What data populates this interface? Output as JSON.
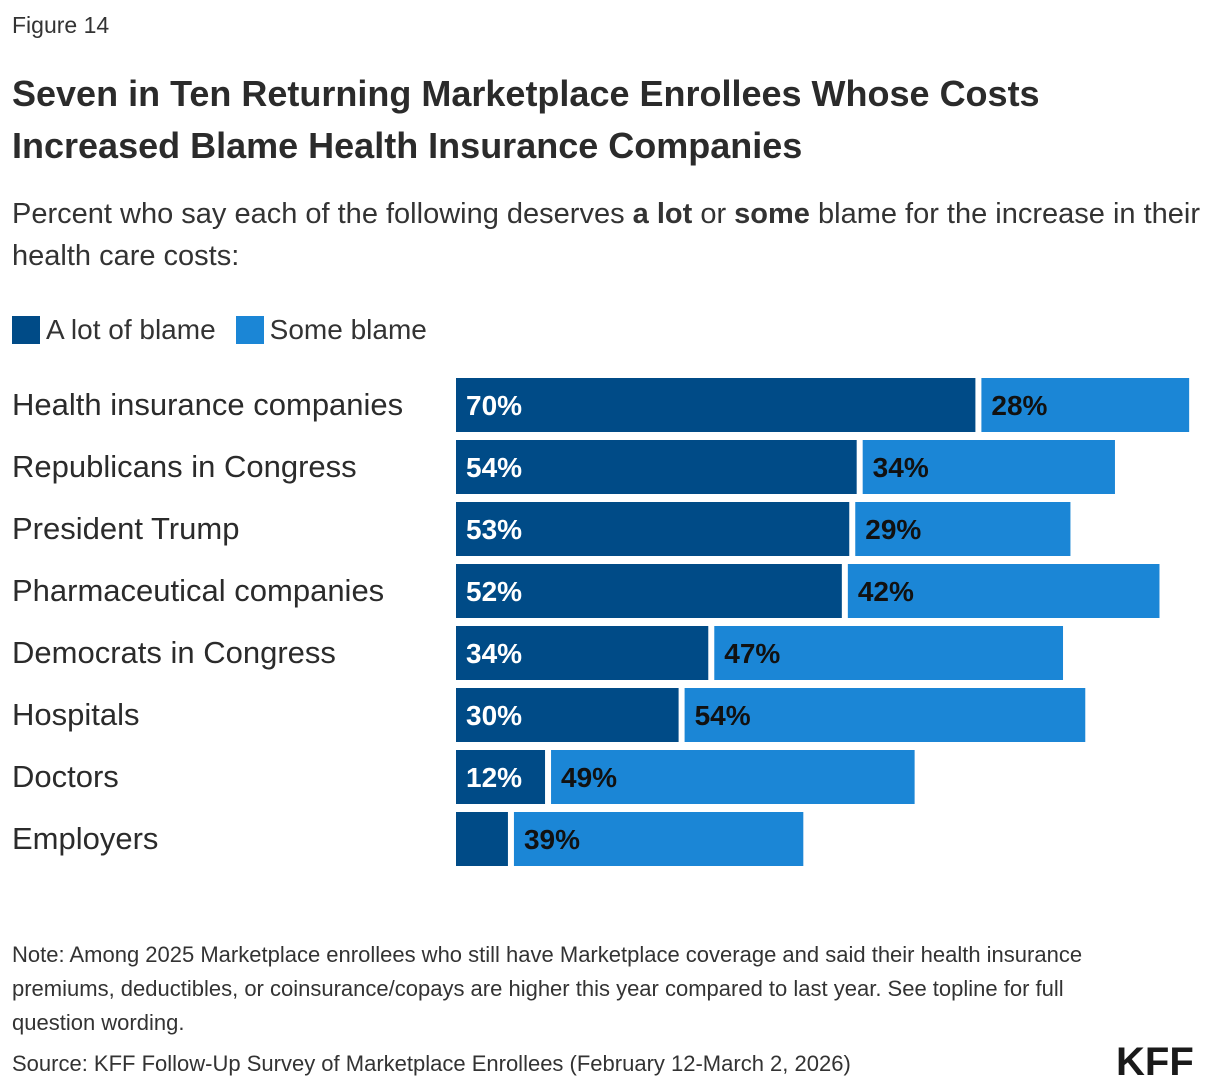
{
  "figure_label": "Figure 14",
  "title": "Seven in Ten Returning Marketplace Enrollees Whose Costs Increased Blame Health Insurance Companies",
  "subtitle": {
    "part1": "Percent who say each of the following deserves ",
    "bold1": "a lot",
    "part2": " or ",
    "bold2": "some",
    "part3": " blame for the increase in their health care costs:"
  },
  "colors": {
    "a_lot": "#004b87",
    "some": "#1b86d6"
  },
  "chart_data": {
    "type": "bar",
    "orientation": "horizontal",
    "stacked": true,
    "categories": [
      "Health insurance companies",
      "Republicans in Congress",
      "President Trump",
      "Pharmaceutical companies",
      "Democrats in Congress",
      "Hospitals",
      "Doctors",
      "Employers"
    ],
    "series": [
      {
        "name": "A lot of blame",
        "color": "#004b87",
        "values": [
          70,
          54,
          53,
          52,
          34,
          30,
          12,
          7
        ],
        "labels": [
          "70%",
          "54%",
          "53%",
          "52%",
          "34%",
          "30%",
          "12%",
          ""
        ]
      },
      {
        "name": "Some blame",
        "color": "#1b86d6",
        "values": [
          28,
          34,
          29,
          42,
          47,
          54,
          49,
          39
        ],
        "labels": [
          "28%",
          "34%",
          "29%",
          "42%",
          "47%",
          "54%",
          "49%",
          "39%"
        ]
      }
    ],
    "legend_position": "top-left",
    "grid": false,
    "xlim": [
      0,
      100
    ]
  },
  "note": "Note: Among 2025 Marketplace enrollees who still have Marketplace coverage and said their health insurance premiums, deductibles, or coinsurance/copays are higher this year compared to last year. See topline for full question wording.",
  "source": "Source: KFF Follow-Up Survey of Marketplace Enrollees (February 12-March 2, 2026)",
  "logo_text": "KFF"
}
